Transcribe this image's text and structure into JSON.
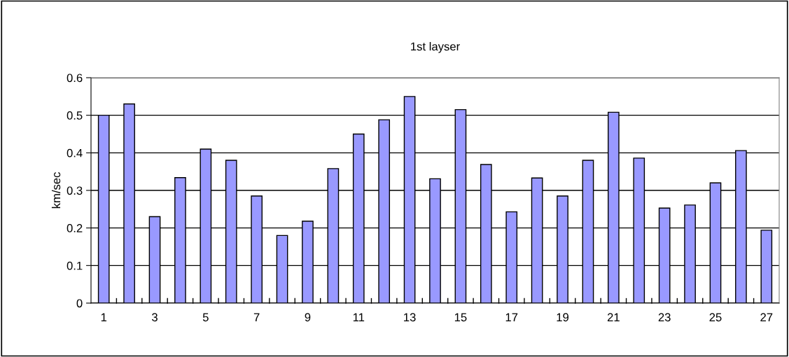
{
  "chart_data": {
    "type": "bar",
    "title": "1st layser",
    "ylabel": "km/sec",
    "categories": [
      "1",
      null,
      "3",
      null,
      "5",
      null,
      "7",
      null,
      "9",
      null,
      "11",
      null,
      "13",
      null,
      "15",
      null,
      "17",
      null,
      "19",
      null,
      "21",
      null,
      "23",
      null,
      "25",
      null,
      "27"
    ],
    "values": [
      0.5,
      0.53,
      0.23,
      0.334,
      0.41,
      0.38,
      0.285,
      0.18,
      0.218,
      0.358,
      0.45,
      0.488,
      0.55,
      0.331,
      0.515,
      0.369,
      0.243,
      0.333,
      0.285,
      0.38,
      0.508,
      0.386,
      0.253,
      0.261,
      0.32,
      0.406,
      0.194
    ],
    "color": "#9999ff",
    "ylim": [
      0,
      0.6
    ],
    "yticks": [
      0,
      0.1,
      0.2,
      0.3,
      0.4,
      0.5,
      0.6
    ],
    "grid": "y",
    "legend": false
  }
}
